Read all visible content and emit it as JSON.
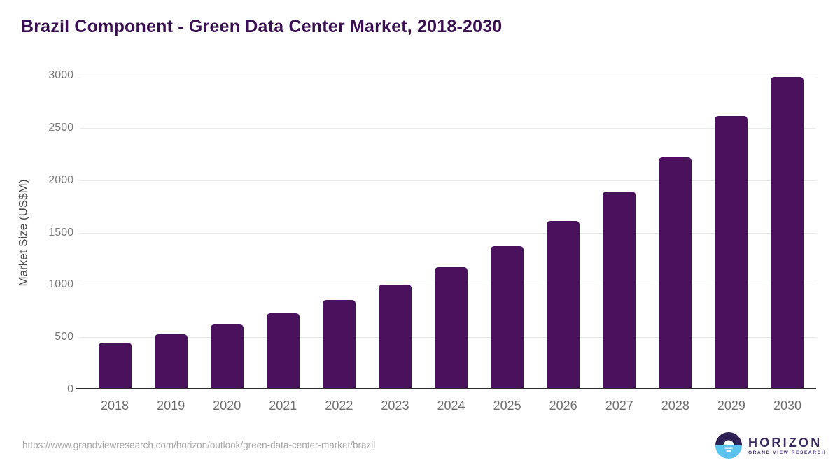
{
  "header": {
    "title": "Brazil Component - Green Data Center Market, 2018-2030"
  },
  "chart_data": {
    "type": "bar",
    "title": "Brazil Component - Green Data Center Market, 2018-2030",
    "categories": [
      "2018",
      "2019",
      "2020",
      "2021",
      "2022",
      "2023",
      "2024",
      "2025",
      "2026",
      "2027",
      "2028",
      "2029",
      "2030"
    ],
    "values": [
      445,
      525,
      620,
      730,
      853,
      1000,
      1170,
      1370,
      1610,
      1890,
      2220,
      2610,
      2990
    ],
    "xlabel": "",
    "ylabel": "Market Size (US$M)",
    "ylim": [
      0,
      3000
    ],
    "yticks": [
      0,
      500,
      1000,
      1500,
      2000,
      2500,
      3000
    ],
    "grid": "horizontal",
    "legend": "none",
    "bar_color": "#4a115c"
  },
  "colors": {
    "title_text": "#3a1053",
    "bar": "#4a115c",
    "gridline": "#e9e9e9",
    "axis_line": "#2d2d2d",
    "ytick_text": "#7a7a7a",
    "xtick_text": "#6f6f6f",
    "footer_text": "#a6a6a6",
    "logo_dark": "#2e2156",
    "logo_blue": "#5cc3ee",
    "logo_text": "#3b2a5e"
  },
  "footer": {
    "source_url": "https://www.grandviewresearch.com/horizon/outlook/green-data-center-market/brazil",
    "logo_name": "HORIZON",
    "logo_subtext": "GRAND VIEW RESEARCH"
  }
}
